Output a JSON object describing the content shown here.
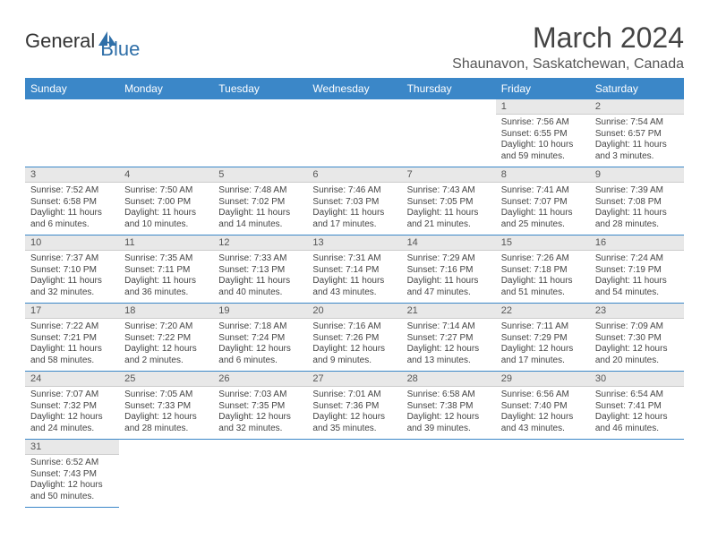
{
  "logo": {
    "text1": "General",
    "text2": "Blue"
  },
  "title": "March 2024",
  "location": "Shaunavon, Saskatchewan, Canada",
  "colors": {
    "header_bg": "#3b87c8",
    "header_text": "#ffffff",
    "daynum_bg": "#e8e8e8",
    "border": "#3b87c8",
    "text": "#444444"
  },
  "weekdays": [
    "Sunday",
    "Monday",
    "Tuesday",
    "Wednesday",
    "Thursday",
    "Friday",
    "Saturday"
  ],
  "weeks": [
    [
      null,
      null,
      null,
      null,
      null,
      {
        "d": "1",
        "sr": "Sunrise: 7:56 AM",
        "ss": "Sunset: 6:55 PM",
        "dl": "Daylight: 10 hours and 59 minutes."
      },
      {
        "d": "2",
        "sr": "Sunrise: 7:54 AM",
        "ss": "Sunset: 6:57 PM",
        "dl": "Daylight: 11 hours and 3 minutes."
      }
    ],
    [
      {
        "d": "3",
        "sr": "Sunrise: 7:52 AM",
        "ss": "Sunset: 6:58 PM",
        "dl": "Daylight: 11 hours and 6 minutes."
      },
      {
        "d": "4",
        "sr": "Sunrise: 7:50 AM",
        "ss": "Sunset: 7:00 PM",
        "dl": "Daylight: 11 hours and 10 minutes."
      },
      {
        "d": "5",
        "sr": "Sunrise: 7:48 AM",
        "ss": "Sunset: 7:02 PM",
        "dl": "Daylight: 11 hours and 14 minutes."
      },
      {
        "d": "6",
        "sr": "Sunrise: 7:46 AM",
        "ss": "Sunset: 7:03 PM",
        "dl": "Daylight: 11 hours and 17 minutes."
      },
      {
        "d": "7",
        "sr": "Sunrise: 7:43 AM",
        "ss": "Sunset: 7:05 PM",
        "dl": "Daylight: 11 hours and 21 minutes."
      },
      {
        "d": "8",
        "sr": "Sunrise: 7:41 AM",
        "ss": "Sunset: 7:07 PM",
        "dl": "Daylight: 11 hours and 25 minutes."
      },
      {
        "d": "9",
        "sr": "Sunrise: 7:39 AM",
        "ss": "Sunset: 7:08 PM",
        "dl": "Daylight: 11 hours and 28 minutes."
      }
    ],
    [
      {
        "d": "10",
        "sr": "Sunrise: 7:37 AM",
        "ss": "Sunset: 7:10 PM",
        "dl": "Daylight: 11 hours and 32 minutes."
      },
      {
        "d": "11",
        "sr": "Sunrise: 7:35 AM",
        "ss": "Sunset: 7:11 PM",
        "dl": "Daylight: 11 hours and 36 minutes."
      },
      {
        "d": "12",
        "sr": "Sunrise: 7:33 AM",
        "ss": "Sunset: 7:13 PM",
        "dl": "Daylight: 11 hours and 40 minutes."
      },
      {
        "d": "13",
        "sr": "Sunrise: 7:31 AM",
        "ss": "Sunset: 7:14 PM",
        "dl": "Daylight: 11 hours and 43 minutes."
      },
      {
        "d": "14",
        "sr": "Sunrise: 7:29 AM",
        "ss": "Sunset: 7:16 PM",
        "dl": "Daylight: 11 hours and 47 minutes."
      },
      {
        "d": "15",
        "sr": "Sunrise: 7:26 AM",
        "ss": "Sunset: 7:18 PM",
        "dl": "Daylight: 11 hours and 51 minutes."
      },
      {
        "d": "16",
        "sr": "Sunrise: 7:24 AM",
        "ss": "Sunset: 7:19 PM",
        "dl": "Daylight: 11 hours and 54 minutes."
      }
    ],
    [
      {
        "d": "17",
        "sr": "Sunrise: 7:22 AM",
        "ss": "Sunset: 7:21 PM",
        "dl": "Daylight: 11 hours and 58 minutes."
      },
      {
        "d": "18",
        "sr": "Sunrise: 7:20 AM",
        "ss": "Sunset: 7:22 PM",
        "dl": "Daylight: 12 hours and 2 minutes."
      },
      {
        "d": "19",
        "sr": "Sunrise: 7:18 AM",
        "ss": "Sunset: 7:24 PM",
        "dl": "Daylight: 12 hours and 6 minutes."
      },
      {
        "d": "20",
        "sr": "Sunrise: 7:16 AM",
        "ss": "Sunset: 7:26 PM",
        "dl": "Daylight: 12 hours and 9 minutes."
      },
      {
        "d": "21",
        "sr": "Sunrise: 7:14 AM",
        "ss": "Sunset: 7:27 PM",
        "dl": "Daylight: 12 hours and 13 minutes."
      },
      {
        "d": "22",
        "sr": "Sunrise: 7:11 AM",
        "ss": "Sunset: 7:29 PM",
        "dl": "Daylight: 12 hours and 17 minutes."
      },
      {
        "d": "23",
        "sr": "Sunrise: 7:09 AM",
        "ss": "Sunset: 7:30 PM",
        "dl": "Daylight: 12 hours and 20 minutes."
      }
    ],
    [
      {
        "d": "24",
        "sr": "Sunrise: 7:07 AM",
        "ss": "Sunset: 7:32 PM",
        "dl": "Daylight: 12 hours and 24 minutes."
      },
      {
        "d": "25",
        "sr": "Sunrise: 7:05 AM",
        "ss": "Sunset: 7:33 PM",
        "dl": "Daylight: 12 hours and 28 minutes."
      },
      {
        "d": "26",
        "sr": "Sunrise: 7:03 AM",
        "ss": "Sunset: 7:35 PM",
        "dl": "Daylight: 12 hours and 32 minutes."
      },
      {
        "d": "27",
        "sr": "Sunrise: 7:01 AM",
        "ss": "Sunset: 7:36 PM",
        "dl": "Daylight: 12 hours and 35 minutes."
      },
      {
        "d": "28",
        "sr": "Sunrise: 6:58 AM",
        "ss": "Sunset: 7:38 PM",
        "dl": "Daylight: 12 hours and 39 minutes."
      },
      {
        "d": "29",
        "sr": "Sunrise: 6:56 AM",
        "ss": "Sunset: 7:40 PM",
        "dl": "Daylight: 12 hours and 43 minutes."
      },
      {
        "d": "30",
        "sr": "Sunrise: 6:54 AM",
        "ss": "Sunset: 7:41 PM",
        "dl": "Daylight: 12 hours and 46 minutes."
      }
    ],
    [
      {
        "d": "31",
        "sr": "Sunrise: 6:52 AM",
        "ss": "Sunset: 7:43 PM",
        "dl": "Daylight: 12 hours and 50 minutes."
      },
      null,
      null,
      null,
      null,
      null,
      null
    ]
  ]
}
